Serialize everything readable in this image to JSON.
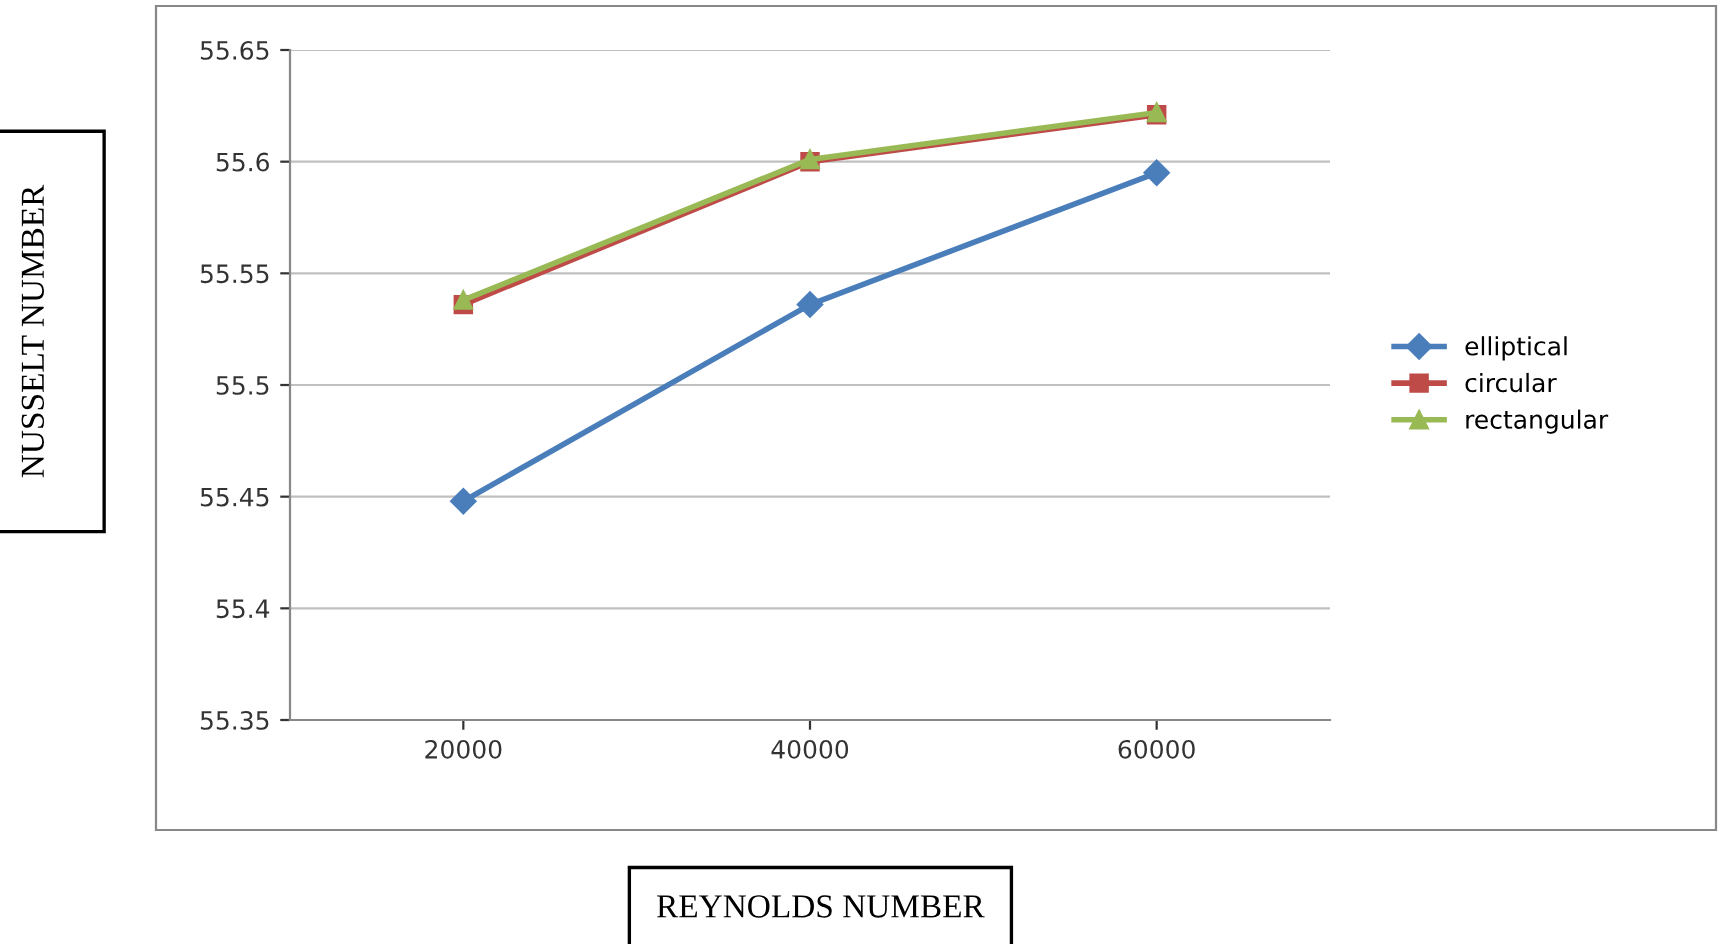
{
  "chart_data": {
    "type": "line",
    "xlabel": "REYNOLDS NUMBER",
    "ylabel": "NUSSELT NUMBER",
    "categories": [
      "20000",
      "40000",
      "60000"
    ],
    "series": [
      {
        "name": "elliptical",
        "color": "#4a7ebb",
        "marker": "diamond",
        "values": [
          55.448,
          55.536,
          55.595
        ]
      },
      {
        "name": "circular",
        "color": "#be4b48",
        "marker": "square",
        "values": [
          55.536,
          55.6,
          55.621
        ]
      },
      {
        "name": "rectangular",
        "color": "#98b954",
        "marker": "triangle",
        "values": [
          55.538,
          55.601,
          55.622
        ]
      }
    ],
    "ylim": [
      55.35,
      55.65
    ],
    "yticks": [
      55.35,
      55.4,
      55.45,
      55.5,
      55.55,
      55.6,
      55.65
    ],
    "grid": "y",
    "legend": "right",
    "line_style": "solid"
  }
}
